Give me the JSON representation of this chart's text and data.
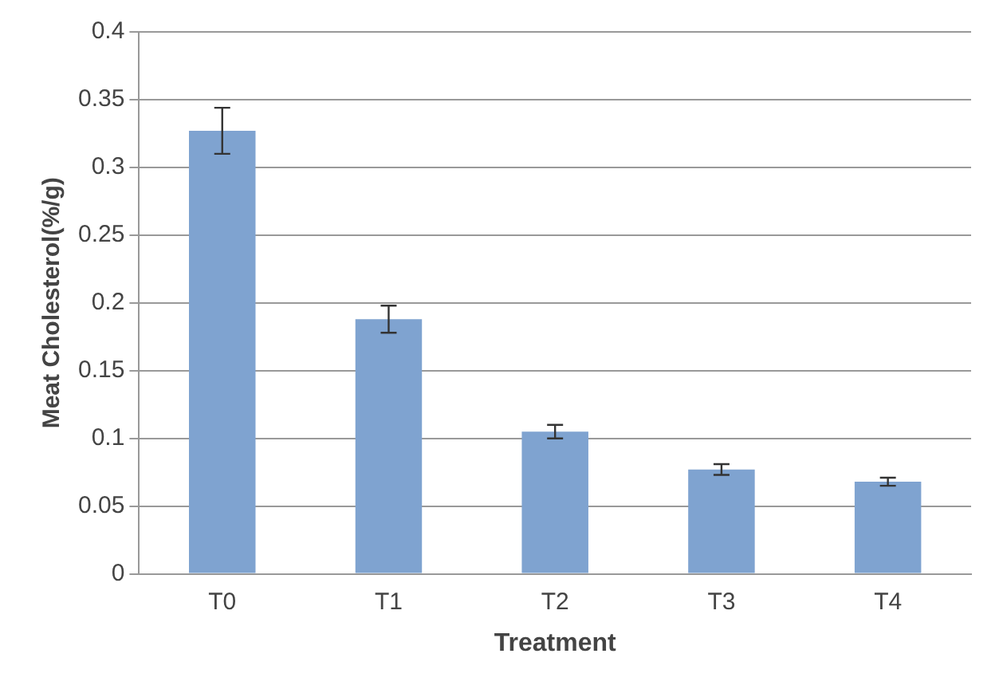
{
  "chart_data": {
    "type": "bar",
    "xlabel": "Treatment",
    "ylabel": "Meat Cholesterol(%/g)",
    "categories": [
      "T0",
      "T1",
      "T2",
      "T3",
      "T4"
    ],
    "values": [
      0.327,
      0.188,
      0.105,
      0.077,
      0.068
    ],
    "errors": [
      0.017,
      0.01,
      0.005,
      0.004,
      0.003
    ],
    "color": "#7fa3d0",
    "ylim": [
      0,
      0.4
    ],
    "yticks": [
      0,
      0.05,
      0.1,
      0.15,
      0.2,
      0.25,
      0.3,
      0.35,
      0.4
    ],
    "grid": "y"
  }
}
